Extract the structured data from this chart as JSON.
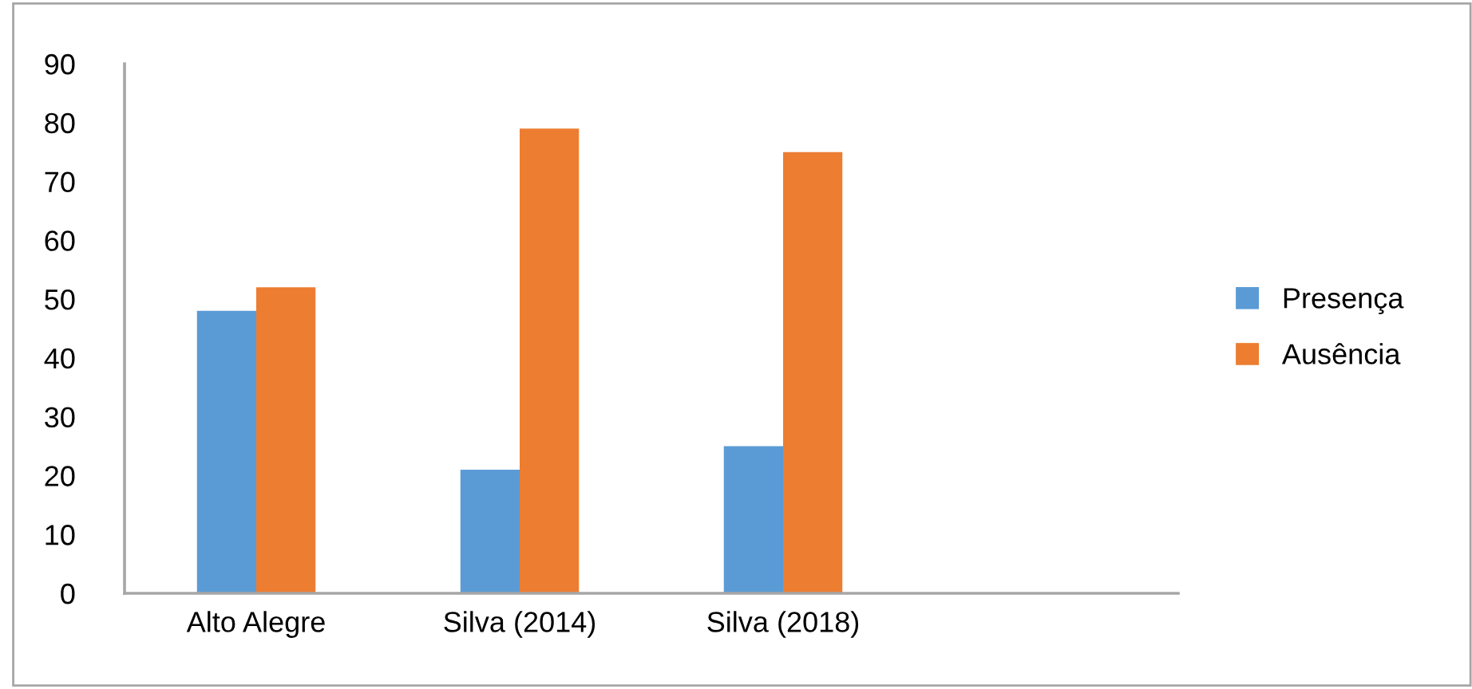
{
  "chart_data": {
    "type": "bar",
    "categories": [
      "Alto Alegre",
      "Silva (2014)",
      "Silva (2018)",
      null
    ],
    "series": [
      {
        "name": "Presença",
        "color": "#5b9bd5",
        "values": [
          48,
          21,
          25,
          null
        ]
      },
      {
        "name": "Ausência",
        "color": "#ed7d31",
        "values": [
          52,
          79,
          75,
          null
        ]
      }
    ],
    "ylim": [
      0,
      90
    ],
    "yticks": [
      0,
      10,
      20,
      30,
      40,
      50,
      60,
      70,
      80,
      90
    ],
    "grid": false,
    "legend": "right"
  }
}
